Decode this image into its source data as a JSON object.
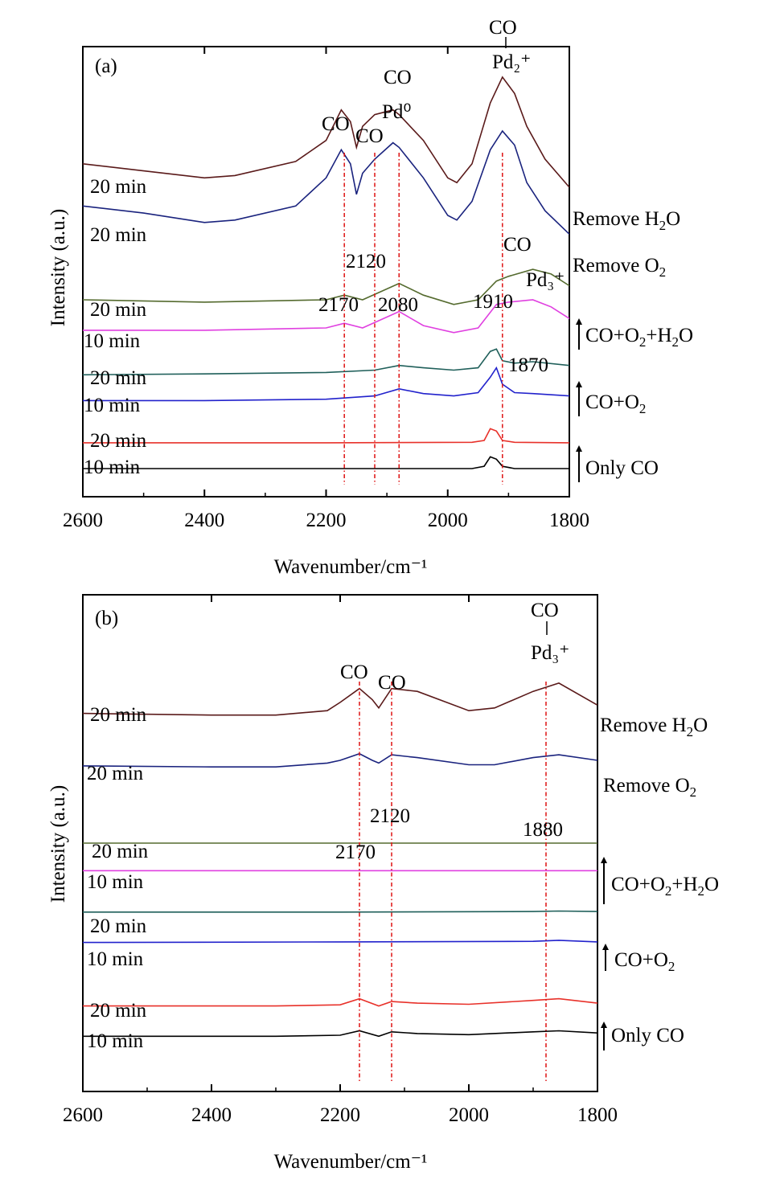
{
  "chart_data": [
    {
      "type": "line",
      "panel_label": "(a)",
      "xlabel": "Wavenumber/cm⁻¹",
      "ylabel": "Intensity (a.u.)",
      "xlim": [
        2600,
        1800
      ],
      "x_reversed": true,
      "xticks": [
        2600,
        2400,
        2200,
        2000,
        1800
      ],
      "y_units": "arbitrary (offset stacked)",
      "grid": false,
      "series": [
        {
          "label": "10 min",
          "group": "Only CO",
          "color": "#000000",
          "baseline": 0.0,
          "x": [
            2600,
            2200,
            1960,
            1940,
            1930,
            1920,
            1910,
            1890,
            1800
          ],
          "y": [
            0.0,
            0.0,
            0.0,
            0.05,
            0.25,
            0.2,
            0.05,
            0.0,
            0.0
          ]
        },
        {
          "label": "20 min",
          "group": "Only CO",
          "color": "#e8312a",
          "baseline": 0.55,
          "x": [
            2600,
            2200,
            1960,
            1940,
            1930,
            1920,
            1910,
            1890,
            1800
          ],
          "y": [
            0.55,
            0.55,
            0.56,
            0.6,
            0.85,
            0.8,
            0.6,
            0.56,
            0.55
          ]
        },
        {
          "label": "10 min",
          "group": "CO+O2",
          "color": "#2222cc",
          "baseline": 1.45,
          "x": [
            2600,
            2400,
            2200,
            2120,
            2080,
            2040,
            1990,
            1950,
            1930,
            1920,
            1910,
            1890,
            1860,
            1800
          ],
          "y": [
            1.45,
            1.45,
            1.48,
            1.55,
            1.7,
            1.6,
            1.55,
            1.62,
            1.95,
            2.15,
            1.8,
            1.62,
            1.6,
            1.55
          ]
        },
        {
          "label": "20 min",
          "group": "CO+O2",
          "color": "#1f5f5a",
          "baseline": 2.0,
          "x": [
            2600,
            2400,
            2200,
            2120,
            2080,
            2040,
            1990,
            1950,
            1930,
            1920,
            1910,
            1890,
            1860,
            1800
          ],
          "y": [
            2.0,
            2.02,
            2.05,
            2.1,
            2.2,
            2.15,
            2.1,
            2.15,
            2.5,
            2.55,
            2.3,
            2.25,
            2.28,
            2.2
          ]
        },
        {
          "label": "10 min",
          "group": "CO+O2+H2O",
          "color": "#e040e0",
          "baseline": 2.95,
          "x": [
            2600,
            2400,
            2200,
            2170,
            2140,
            2080,
            2040,
            1990,
            1950,
            1920,
            1900,
            1860,
            1830,
            1800
          ],
          "y": [
            2.95,
            2.95,
            3.0,
            3.1,
            3.0,
            3.35,
            3.05,
            2.9,
            3.0,
            3.5,
            3.55,
            3.6,
            3.45,
            3.2
          ]
        },
        {
          "label": "20 min",
          "group": "CO+O2+H2O",
          "color": "#556b2f",
          "baseline": 3.6,
          "x": [
            2600,
            2400,
            2200,
            2170,
            2140,
            2080,
            2040,
            1990,
            1950,
            1920,
            1900,
            1860,
            1830,
            1800
          ],
          "y": [
            3.6,
            3.55,
            3.6,
            3.7,
            3.6,
            3.95,
            3.7,
            3.5,
            3.6,
            4.0,
            4.1,
            4.25,
            4.15,
            3.9
          ]
        },
        {
          "label": "20 min",
          "group": "Remove O2",
          "color": "#1a237e",
          "baseline": 5.6,
          "x": [
            2600,
            2500,
            2400,
            2350,
            2250,
            2200,
            2175,
            2160,
            2150,
            2140,
            2120,
            2090,
            2080,
            2040,
            2000,
            1985,
            1960,
            1930,
            1910,
            1890,
            1870,
            1840,
            1800
          ],
          "y": [
            5.6,
            5.45,
            5.25,
            5.3,
            5.6,
            6.2,
            6.8,
            6.5,
            5.85,
            6.3,
            6.6,
            6.95,
            6.85,
            6.2,
            5.4,
            5.3,
            5.7,
            6.8,
            7.2,
            6.9,
            6.1,
            5.5,
            5.0
          ]
        },
        {
          "label": "20 min",
          "group": "Remove H2O",
          "color": "#5a1a1a",
          "baseline": 6.5,
          "x": [
            2600,
            2500,
            2400,
            2350,
            2250,
            2200,
            2175,
            2160,
            2150,
            2140,
            2120,
            2090,
            2080,
            2040,
            2000,
            1985,
            1960,
            1930,
            1910,
            1890,
            1870,
            1840,
            1800
          ],
          "y": [
            6.5,
            6.35,
            6.2,
            6.25,
            6.55,
            7.0,
            7.65,
            7.4,
            6.85,
            7.3,
            7.55,
            7.65,
            7.55,
            7.0,
            6.2,
            6.1,
            6.5,
            7.8,
            8.35,
            8.0,
            7.3,
            6.6,
            6.0
          ]
        }
      ],
      "group_labels": [
        "Only CO",
        "CO+O2",
        "CO+O2+H2O",
        "Remove O2",
        "Remove H2O"
      ],
      "reference_lines": [
        2170,
        2120,
        2080,
        1910
      ],
      "annotations": [
        "2170",
        "2120",
        "2080",
        "1910",
        "1870",
        "CO",
        "Pd⁰",
        "Pd₂⁺",
        "Pd₃⁺"
      ]
    },
    {
      "type": "line",
      "panel_label": "(b)",
      "xlabel": "Wavenumber/cm⁻¹",
      "ylabel": "Intensity (a.u.)",
      "xlim": [
        2600,
        1800
      ],
      "x_reversed": true,
      "xticks": [
        2600,
        2400,
        2200,
        2000,
        1800
      ],
      "y_units": "arbitrary (offset stacked)",
      "grid": false,
      "series": [
        {
          "label": "10 min",
          "group": "Only CO",
          "color": "#000000",
          "baseline": 0.0,
          "x": [
            2600,
            2300,
            2200,
            2170,
            2140,
            2120,
            2080,
            2000,
            1900,
            1860,
            1800
          ],
          "y": [
            0.0,
            0.0,
            0.02,
            0.1,
            0.0,
            0.08,
            0.05,
            0.03,
            0.08,
            0.1,
            0.06
          ]
        },
        {
          "label": "20 min",
          "group": "Only CO",
          "color": "#e8312a",
          "baseline": 0.55,
          "x": [
            2600,
            2300,
            2200,
            2170,
            2140,
            2120,
            2080,
            2000,
            1900,
            1860,
            1800
          ],
          "y": [
            0.55,
            0.55,
            0.57,
            0.68,
            0.55,
            0.63,
            0.6,
            0.58,
            0.65,
            0.68,
            0.6
          ]
        },
        {
          "label": "10 min",
          "group": "CO+O2",
          "color": "#2222cc",
          "baseline": 1.7,
          "x": [
            2600,
            2200,
            1900,
            1860,
            1800
          ],
          "y": [
            1.7,
            1.71,
            1.72,
            1.74,
            1.71
          ]
        },
        {
          "label": "20 min",
          "group": "CO+O2",
          "color": "#1f5f5a",
          "baseline": 2.25,
          "x": [
            2600,
            2200,
            1900,
            1860,
            1800
          ],
          "y": [
            2.25,
            2.25,
            2.26,
            2.27,
            2.26
          ]
        },
        {
          "label": "10 min",
          "group": "CO+O2+H2O",
          "color": "#e040e0",
          "baseline": 3.0,
          "x": [
            2600,
            1800
          ],
          "y": [
            3.0,
            3.0
          ]
        },
        {
          "label": "20 min",
          "group": "CO+O2+H2O",
          "color": "#556b2f",
          "baseline": 3.5,
          "x": [
            2600,
            1800
          ],
          "y": [
            3.5,
            3.5
          ]
        },
        {
          "label": "20 min",
          "group": "Remove O2",
          "color": "#1a237e",
          "baseline": 4.9,
          "x": [
            2600,
            2400,
            2300,
            2220,
            2200,
            2170,
            2150,
            2140,
            2120,
            2080,
            2000,
            1960,
            1900,
            1860,
            1800
          ],
          "y": [
            4.9,
            4.88,
            4.88,
            4.95,
            5.0,
            5.12,
            5.0,
            4.95,
            5.1,
            5.05,
            4.92,
            4.92,
            5.05,
            5.1,
            5.0
          ]
        },
        {
          "label": "20 min",
          "group": "Remove H2O",
          "color": "#5a1a1a",
          "baseline": 5.85,
          "x": [
            2600,
            2400,
            2300,
            2220,
            2200,
            2170,
            2150,
            2140,
            2120,
            2080,
            2000,
            1960,
            1900,
            1860,
            1800
          ],
          "y": [
            5.85,
            5.82,
            5.82,
            5.9,
            6.05,
            6.3,
            6.1,
            5.95,
            6.3,
            6.25,
            5.9,
            5.95,
            6.25,
            6.4,
            6.0
          ]
        }
      ],
      "group_labels": [
        "Only CO",
        "CO+O2",
        "CO+O2+H2O",
        "Remove O2",
        "Remove H2O"
      ],
      "reference_lines": [
        2170,
        2120,
        1880
      ],
      "annotations": [
        "2170",
        "2120",
        "1880",
        "CO",
        "Pd₃⁺"
      ]
    }
  ]
}
